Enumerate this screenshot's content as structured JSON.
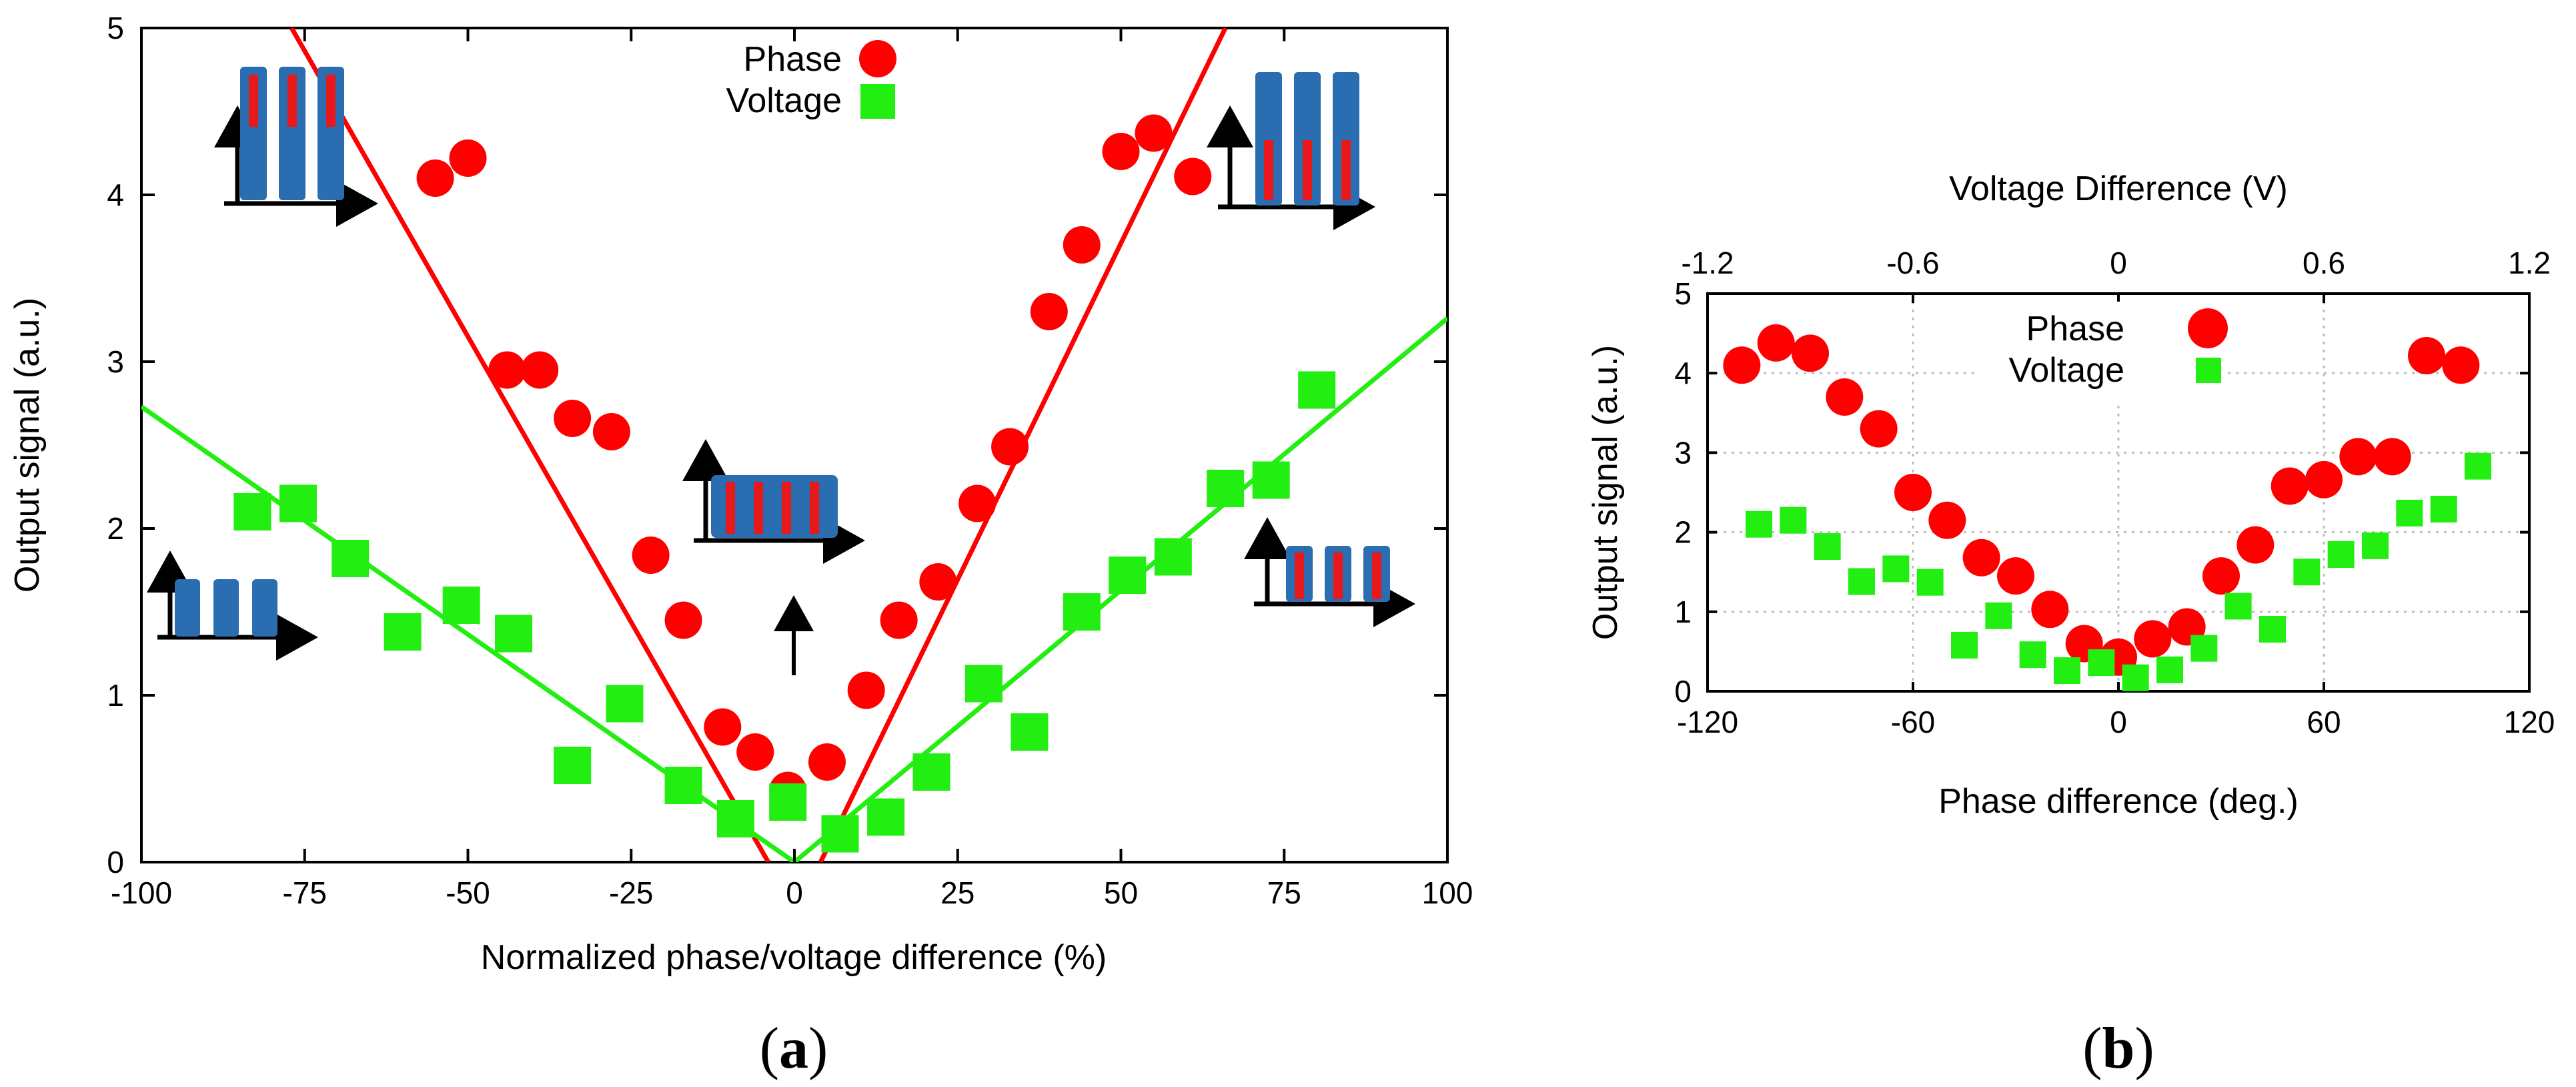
{
  "colors": {
    "phase": "#ff0000",
    "voltage": "#22ee11",
    "grid": "#bbbbbb",
    "frame": "#000000"
  },
  "chart_data": [
    {
      "panel": "a",
      "caption": {
        "open": "(",
        "letter": "a",
        "close": ")"
      },
      "type": "scatter",
      "xlabel": "Normalized phase/voltage difference (%)",
      "ylabel": "Output signal (a.u.)",
      "xlim": [
        -100,
        100
      ],
      "ylim": [
        0,
        5
      ],
      "xticks": [
        "-100",
        "-75",
        "-50",
        "-25",
        "0",
        "25",
        "50",
        "75",
        "100"
      ],
      "yticks": [
        "0",
        "1",
        "2",
        "3",
        "4",
        "5"
      ],
      "legend": [
        "Phase",
        "Voltage"
      ],
      "grid": false,
      "series": [
        {
          "name": "Phase",
          "marker": "circle",
          "points": [
            [
              -55,
              4.1
            ],
            [
              -50,
              4.22
            ],
            [
              -44,
              2.95
            ],
            [
              -39,
              2.95
            ],
            [
              -34,
              2.66
            ],
            [
              -28,
              2.58
            ],
            [
              -22,
              1.84
            ],
            [
              -17,
              1.45
            ],
            [
              -11,
              0.81
            ],
            [
              -6,
              0.66
            ],
            [
              -1,
              0.43
            ],
            [
              5,
              0.6
            ],
            [
              11,
              1.03
            ],
            [
              16,
              1.45
            ],
            [
              22,
              1.68
            ],
            [
              28,
              2.15
            ],
            [
              33,
              2.49
            ],
            [
              39,
              3.3
            ],
            [
              44,
              3.7
            ],
            [
              50,
              4.26
            ],
            [
              55,
              4.37
            ],
            [
              61,
              4.11
            ]
          ],
          "fit": [
            [
              -77,
              5
            ],
            [
              -4,
              0
            ],
            [
              4,
              0
            ],
            [
              66,
              5
            ]
          ]
        },
        {
          "name": "Voltage",
          "marker": "square",
          "points": [
            [
              -83,
              2.1
            ],
            [
              -76,
              2.15
            ],
            [
              -68,
              1.82
            ],
            [
              -60,
              1.38
            ],
            [
              -51,
              1.54
            ],
            [
              -43,
              1.37
            ],
            [
              -34,
              0.58
            ],
            [
              -26,
              0.95
            ],
            [
              -17,
              0.46
            ],
            [
              -9,
              0.26
            ],
            [
              -1,
              0.36
            ],
            [
              7,
              0.17
            ],
            [
              14,
              0.27
            ],
            [
              21,
              0.54
            ],
            [
              29,
              1.07
            ],
            [
              36,
              0.78
            ],
            [
              44,
              1.5
            ],
            [
              51,
              1.72
            ],
            [
              58,
              1.83
            ],
            [
              66,
              2.24
            ],
            [
              73,
              2.29
            ],
            [
              80,
              2.83
            ]
          ],
          "fit": [
            [
              -100,
              2.73
            ],
            [
              0,
              0
            ],
            [
              100,
              3.26
            ]
          ]
        }
      ]
    },
    {
      "panel": "b",
      "caption": {
        "open": "(",
        "letter": "b",
        "close": ")"
      },
      "type": "scatter",
      "xlabel": "Phase difference (deg.)",
      "x2label": "Voltage Difference (V)",
      "ylabel": "Output signal (a.u.)",
      "xlim": [
        -120,
        120
      ],
      "x2lim": [
        -1.2,
        1.2
      ],
      "ylim": [
        0,
        5
      ],
      "xticks": [
        "-120",
        "-60",
        "0",
        "60",
        "120"
      ],
      "x2ticks": [
        "-1.2",
        "-0.6",
        "0",
        "0.6",
        "1.2"
      ],
      "yticks": [
        "0",
        "1",
        "2",
        "3",
        "4",
        "5"
      ],
      "legend": [
        "Phase",
        "Voltage"
      ],
      "grid": true,
      "series": [
        {
          "name": "Phase",
          "marker": "circle",
          "points": [
            [
              -110,
              4.1
            ],
            [
              -100,
              4.38
            ],
            [
              -90,
              4.25
            ],
            [
              -80,
              3.7
            ],
            [
              -70,
              3.3
            ],
            [
              -60,
              2.5
            ],
            [
              -50,
              2.15
            ],
            [
              -40,
              1.68
            ],
            [
              -30,
              1.45
            ],
            [
              -20,
              1.03
            ],
            [
              -10,
              0.6
            ],
            [
              0,
              0.43
            ],
            [
              10,
              0.66
            ],
            [
              20,
              0.81
            ],
            [
              30,
              1.45
            ],
            [
              40,
              1.84
            ],
            [
              50,
              2.58
            ],
            [
              60,
              2.66
            ],
            [
              70,
              2.95
            ],
            [
              80,
              2.95
            ],
            [
              90,
              4.22
            ],
            [
              100,
              4.1
            ]
          ]
        },
        {
          "name": "Voltage",
          "marker": "square",
          "points": [
            [
              -105,
              2.1
            ],
            [
              -95,
              2.15
            ],
            [
              -85,
              1.82
            ],
            [
              -75,
              1.38
            ],
            [
              -65,
              1.54
            ],
            [
              -55,
              1.37
            ],
            [
              -45,
              0.58
            ],
            [
              -35,
              0.95
            ],
            [
              -25,
              0.46
            ],
            [
              -15,
              0.26
            ],
            [
              -5,
              0.36
            ],
            [
              5,
              0.17
            ],
            [
              15,
              0.27
            ],
            [
              25,
              0.54
            ],
            [
              35,
              1.07
            ],
            [
              45,
              0.78
            ],
            [
              55,
              1.5
            ],
            [
              65,
              1.72
            ],
            [
              75,
              1.83
            ],
            [
              85,
              2.24
            ],
            [
              95,
              2.29
            ],
            [
              105,
              2.83
            ]
          ]
        }
      ]
    }
  ]
}
